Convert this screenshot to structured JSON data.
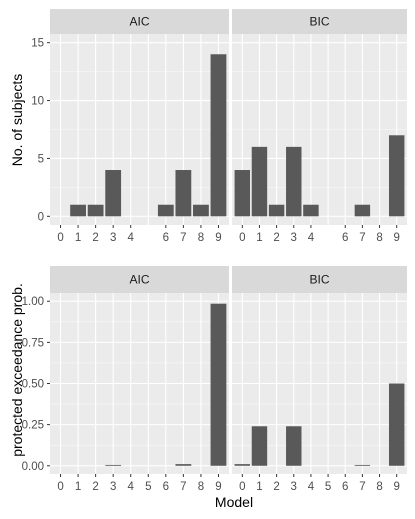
{
  "chart_data": [
    {
      "type": "bar",
      "facet": "AIC",
      "categories": [
        "0",
        "1",
        "2",
        "3",
        "4",
        "5",
        "6",
        "7",
        "8",
        "9"
      ],
      "xtick_labels": [
        "0",
        "1",
        "2",
        "3",
        "4",
        "6",
        "7",
        "8",
        "9"
      ],
      "values": [
        0,
        1,
        1,
        4,
        0,
        0,
        1,
        4,
        1,
        14
      ],
      "ylabel": "No. of subjects",
      "ylim": [
        0,
        15
      ],
      "yticks": [
        0,
        5,
        10,
        15
      ],
      "ytick_labels": [
        "0",
        "5",
        "10",
        "15"
      ],
      "grid": true
    },
    {
      "type": "bar",
      "facet": "BIC",
      "categories": [
        "0",
        "1",
        "2",
        "3",
        "4",
        "5",
        "6",
        "7",
        "8",
        "9"
      ],
      "xtick_labels": [
        "0",
        "1",
        "2",
        "3",
        "4",
        "6",
        "7",
        "8",
        "9"
      ],
      "values": [
        4,
        6,
        1,
        6,
        1,
        0,
        0,
        1,
        0,
        7
      ],
      "ylim": [
        0,
        15
      ],
      "grid": true
    },
    {
      "type": "bar",
      "facet": "AIC",
      "categories": [
        "0",
        "1",
        "2",
        "3",
        "4",
        "5",
        "6",
        "7",
        "8",
        "9"
      ],
      "xtick_labels": [
        "0",
        "1",
        "2",
        "3",
        "4",
        "5",
        "6",
        "7",
        "8",
        "9"
      ],
      "values": [
        0,
        0,
        0,
        0.005,
        0,
        0,
        0,
        0.01,
        0,
        0.985
      ],
      "ylabel": "protected exceedance prob.",
      "ylim": [
        0,
        1
      ],
      "yticks": [
        0,
        0.25,
        0.5,
        0.75,
        1
      ],
      "ytick_labels": [
        "0.00",
        "0.25",
        "0.50",
        "0.75",
        "1.00"
      ],
      "grid": true
    },
    {
      "type": "bar",
      "facet": "BIC",
      "categories": [
        "0",
        "1",
        "2",
        "3",
        "4",
        "5",
        "6",
        "7",
        "8",
        "9"
      ],
      "xtick_labels": [
        "0",
        "1",
        "2",
        "3",
        "4",
        "5",
        "6",
        "7",
        "8",
        "9"
      ],
      "values": [
        0.01,
        0.24,
        0,
        0.24,
        0,
        0,
        0,
        0.005,
        0,
        0.5
      ],
      "ylim": [
        0,
        1
      ],
      "grid": true
    }
  ],
  "xlabel": "Model",
  "colors": {
    "bar": "#595959",
    "panel": "#ebebeb",
    "strip": "#d9d9d9",
    "grid": "#ffffff"
  }
}
